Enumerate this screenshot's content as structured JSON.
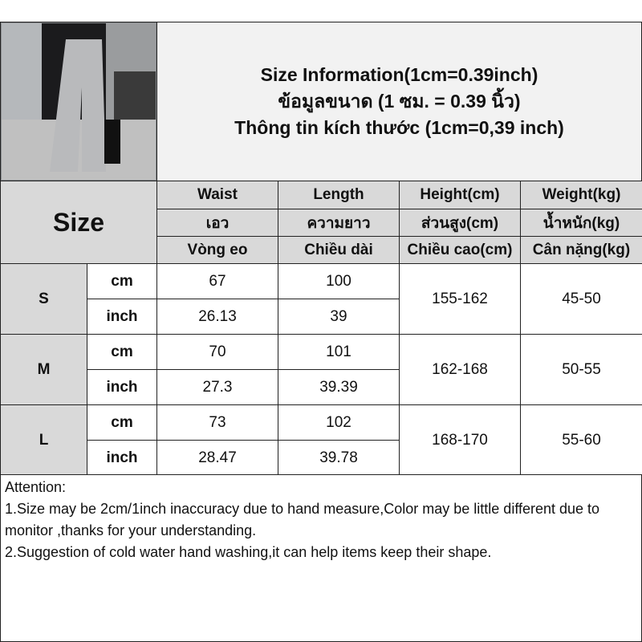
{
  "title": {
    "line1": "Size Information(1cm=0.39inch)",
    "line2": "ข้อมูลขนาด (1 ซม. = 0.39 นิ้ว)",
    "line3": "Thông tin kích thước (1cm=0,39 inch)"
  },
  "size_label": "Size",
  "headers": [
    {
      "en": "Waist",
      "th": "เอว",
      "vi": "Vòng eo"
    },
    {
      "en": "Length",
      "th": "ความยาว",
      "vi": "Chiều dài"
    },
    {
      "en": "Height(cm)",
      "th": "ส่วนสูง(cm)",
      "vi": "Chiều cao(cm)"
    },
    {
      "en": "Weight(kg)",
      "th": "น้ำหนัก(kg)",
      "vi": "Cân nặng(kg)"
    }
  ],
  "units": {
    "cm": "cm",
    "inch": "inch"
  },
  "rows": [
    {
      "size": "S",
      "cm": {
        "waist": "67",
        "length": "100"
      },
      "inch": {
        "waist": "26.13",
        "length": "39"
      },
      "height": "155-162",
      "weight": "45-50"
    },
    {
      "size": "M",
      "cm": {
        "waist": "70",
        "length": "101"
      },
      "inch": {
        "waist": "27.3",
        "length": "39.39"
      },
      "height": "162-168",
      "weight": "50-55"
    },
    {
      "size": "L",
      "cm": {
        "waist": "73",
        "length": "102"
      },
      "inch": {
        "waist": "28.47",
        "length": "39.78"
      },
      "height": "168-170",
      "weight": "55-60"
    }
  ],
  "notes": {
    "heading": "Attention:",
    "line1": "1.Size may be 2cm/1inch inaccuracy due to hand measure,Color may be little different due to monitor ,thanks for your understanding.",
    "line2": "2.Suggestion of cold water hand washing,it can help items keep their shape."
  }
}
